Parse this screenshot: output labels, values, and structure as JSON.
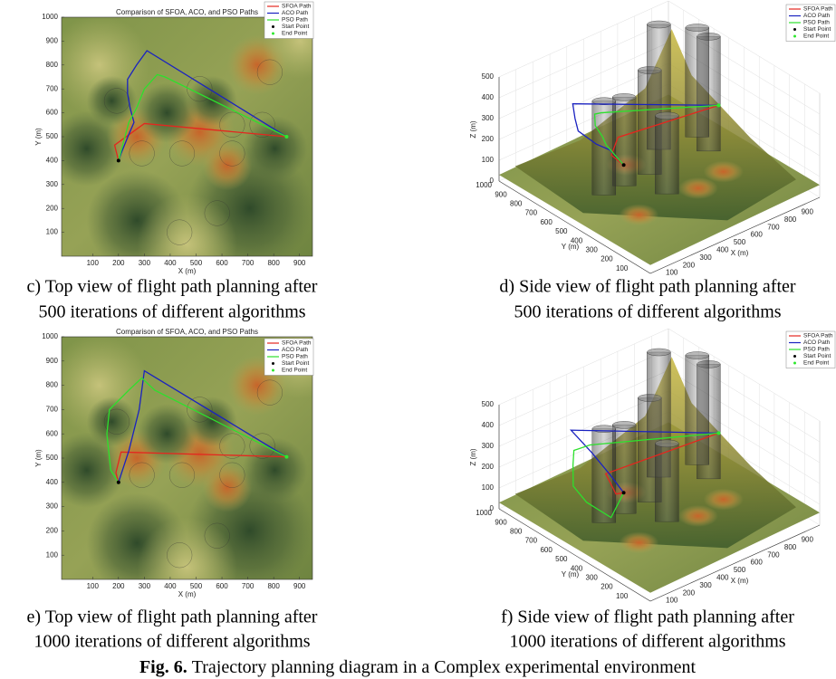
{
  "chart_data": [
    {
      "type": "line",
      "title": "Comparison of SFOA, ACO, and PSO Paths",
      "xlabel": "X (m)",
      "ylabel": "Y (m)",
      "xlim": [
        -20,
        950
      ],
      "ylim": [
        0,
        1000
      ],
      "xticks": [
        100,
        200,
        300,
        400,
        500,
        600,
        700,
        800,
        900
      ],
      "yticks": [
        100,
        200,
        300,
        400,
        500,
        600,
        700,
        800,
        900,
        1000
      ],
      "series": [
        {
          "name": "SFOA Path",
          "color": "#e4261f",
          "x": [
            200,
            185,
            300,
            850
          ],
          "y": [
            400,
            465,
            555,
            500
          ]
        },
        {
          "name": "ACO Path",
          "color": "#1a22c0",
          "x": [
            200,
            210,
            240,
            260,
            245,
            235,
            235,
            270,
            310,
            850
          ],
          "y": [
            400,
            430,
            510,
            560,
            620,
            680,
            740,
            800,
            860,
            500
          ]
        },
        {
          "name": "PSO Path",
          "color": "#2de02d",
          "x": [
            200,
            240,
            270,
            300,
            350,
            380,
            850
          ],
          "y": [
            400,
            560,
            620,
            700,
            760,
            750,
            500
          ]
        }
      ],
      "points": [
        {
          "name": "Start Point",
          "color": "#000000",
          "x": 200,
          "y": 400
        },
        {
          "name": "End Point",
          "color": "#2ee82e",
          "x": 850,
          "y": 500
        }
      ],
      "caption": [
        "c) Top view of flight path planning after",
        "500 iterations of different algorithms"
      ]
    },
    {
      "type": "line3d",
      "xlabel": "X (m)",
      "ylabel": "Y (m)",
      "zlabel": "Z (m)",
      "xlim": [
        0,
        1000
      ],
      "ylim": [
        0,
        1000
      ],
      "zlim": [
        0,
        500
      ],
      "xticks": [
        100,
        200,
        300,
        400,
        500,
        600,
        700,
        800,
        900
      ],
      "yticks": [
        100,
        200,
        300,
        400,
        500,
        600,
        700,
        800,
        900,
        1000
      ],
      "zticks": [
        0,
        100,
        200,
        300,
        400,
        500
      ],
      "series": [
        {
          "name": "SFOA Path",
          "color": "#e4261f",
          "x": [
            200,
            190,
            300,
            850
          ],
          "y": [
            400,
            470,
            550,
            500
          ],
          "z": [
            270,
            290,
            300,
            275
          ]
        },
        {
          "name": "ACO Path",
          "color": "#1a22c0",
          "x": [
            200,
            240,
            260,
            235,
            235,
            270,
            310,
            850
          ],
          "y": [
            400,
            510,
            560,
            620,
            740,
            800,
            860,
            500
          ],
          "z": [
            270,
            260,
            250,
            260,
            270,
            290,
            320,
            275
          ]
        },
        {
          "name": "PSO Path",
          "color": "#2de02d",
          "x": [
            200,
            240,
            270,
            300,
            350,
            380,
            850
          ],
          "y": [
            400,
            560,
            620,
            700,
            760,
            750,
            500
          ],
          "z": [
            270,
            280,
            285,
            290,
            300,
            300,
            275
          ]
        }
      ],
      "points": [
        {
          "name": "Start Point",
          "color": "#000000",
          "x": 200,
          "y": 400,
          "z": 270
        },
        {
          "name": "End Point",
          "color": "#2ee82e",
          "x": 850,
          "y": 500,
          "z": 275
        }
      ],
      "caption": [
        "d) Side view of flight path planning after",
        "500 iterations of different algorithms"
      ]
    },
    {
      "type": "line",
      "title": "Comparison of SFOA, ACO, and PSO Paths",
      "xlabel": "X (m)",
      "ylabel": "Y (m)",
      "xlim": [
        -20,
        950
      ],
      "ylim": [
        0,
        1000
      ],
      "xticks": [
        100,
        200,
        300,
        400,
        500,
        600,
        700,
        800,
        900
      ],
      "yticks": [
        100,
        200,
        300,
        400,
        500,
        600,
        700,
        800,
        900,
        1000
      ],
      "series": [
        {
          "name": "SFOA Path",
          "color": "#e4261f",
          "x": [
            200,
            190,
            210,
            850
          ],
          "y": [
            400,
            440,
            525,
            505
          ]
        },
        {
          "name": "ACO Path",
          "color": "#1a22c0",
          "x": [
            200,
            240,
            280,
            300,
            850
          ],
          "y": [
            400,
            530,
            700,
            860,
            505
          ]
        },
        {
          "name": "PSO Path",
          "color": "#2de02d",
          "x": [
            200,
            170,
            155,
            165,
            240,
            290,
            340,
            850
          ],
          "y": [
            400,
            450,
            600,
            700,
            780,
            830,
            780,
            505
          ]
        }
      ],
      "points": [
        {
          "name": "Start Point",
          "color": "#000000",
          "x": 200,
          "y": 400
        },
        {
          "name": "End Point",
          "color": "#2ee82e",
          "x": 850,
          "y": 505
        }
      ],
      "caption": [
        "e) Top view of flight path planning after",
        "1000 iterations of different algorithms"
      ]
    },
    {
      "type": "line3d",
      "xlabel": "X (m)",
      "ylabel": "Y (m)",
      "zlabel": "Z (m)",
      "xlim": [
        0,
        1000
      ],
      "ylim": [
        0,
        1000
      ],
      "zlim": [
        0,
        500
      ],
      "xticks": [
        100,
        200,
        300,
        400,
        500,
        600,
        700,
        800,
        900
      ],
      "yticks": [
        100,
        200,
        300,
        400,
        500,
        600,
        700,
        800,
        900,
        1000
      ],
      "zticks": [
        0,
        100,
        200,
        300,
        400,
        500
      ],
      "series": [
        {
          "name": "SFOA Path",
          "color": "#e4261f",
          "x": [
            200,
            190,
            210,
            850
          ],
          "y": [
            400,
            440,
            530,
            500
          ],
          "z": [
            270,
            250,
            300,
            275
          ]
        },
        {
          "name": "ACO Path",
          "color": "#1a22c0",
          "x": [
            200,
            240,
            280,
            300,
            850
          ],
          "y": [
            400,
            530,
            700,
            860,
            500
          ],
          "z": [
            270,
            280,
            300,
            330,
            275
          ]
        },
        {
          "name": "PSO Path",
          "color": "#2de02d",
          "x": [
            200,
            170,
            160,
            170,
            240,
            290,
            340,
            850
          ],
          "y": [
            400,
            450,
            600,
            700,
            780,
            830,
            780,
            500
          ],
          "z": [
            270,
            140,
            150,
            180,
            220,
            250,
            280,
            275
          ]
        }
      ],
      "points": [
        {
          "name": "Start Point",
          "color": "#000000",
          "x": 200,
          "y": 400,
          "z": 270
        },
        {
          "name": "End Point",
          "color": "#2ee82e",
          "x": 850,
          "y": 500,
          "z": 275
        }
      ],
      "caption": [
        "f) Side view of flight path planning after",
        "1000 iterations of different algorithms"
      ]
    }
  ],
  "figure_caption": {
    "label": "Fig. 6.",
    "text": "Trajectory planning diagram in a Complex experimental environment"
  }
}
